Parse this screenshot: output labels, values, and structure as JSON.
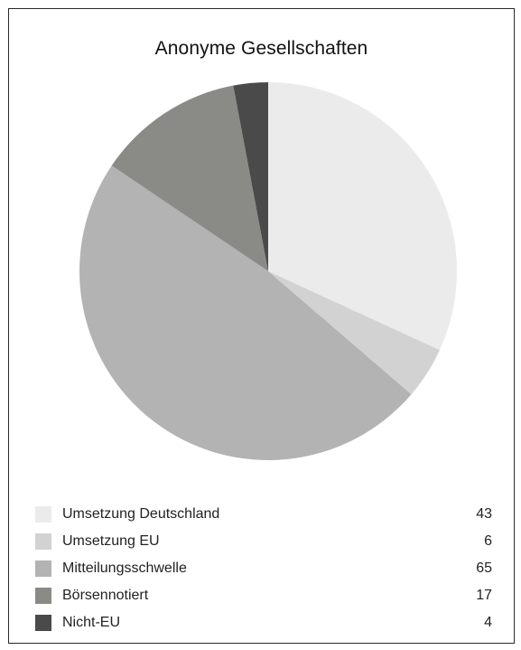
{
  "chart_data": {
    "type": "pie",
    "title": "Anonyme Gesellschaften",
    "legend_position": "bottom",
    "slices": [
      {
        "label": "Umsetzung Deutschland",
        "value": 43,
        "color": "#ebebeb"
      },
      {
        "label": "Umsetzung EU",
        "value": 6,
        "color": "#d2d2d2"
      },
      {
        "label": "Mitteilungsschwelle",
        "value": 65,
        "color": "#b3b3b3"
      },
      {
        "label": "Börsennotiert",
        "value": 17,
        "color": "#8a8a87"
      },
      {
        "label": "Nicht-EU",
        "value": 4,
        "color": "#4a4a4a"
      }
    ]
  }
}
